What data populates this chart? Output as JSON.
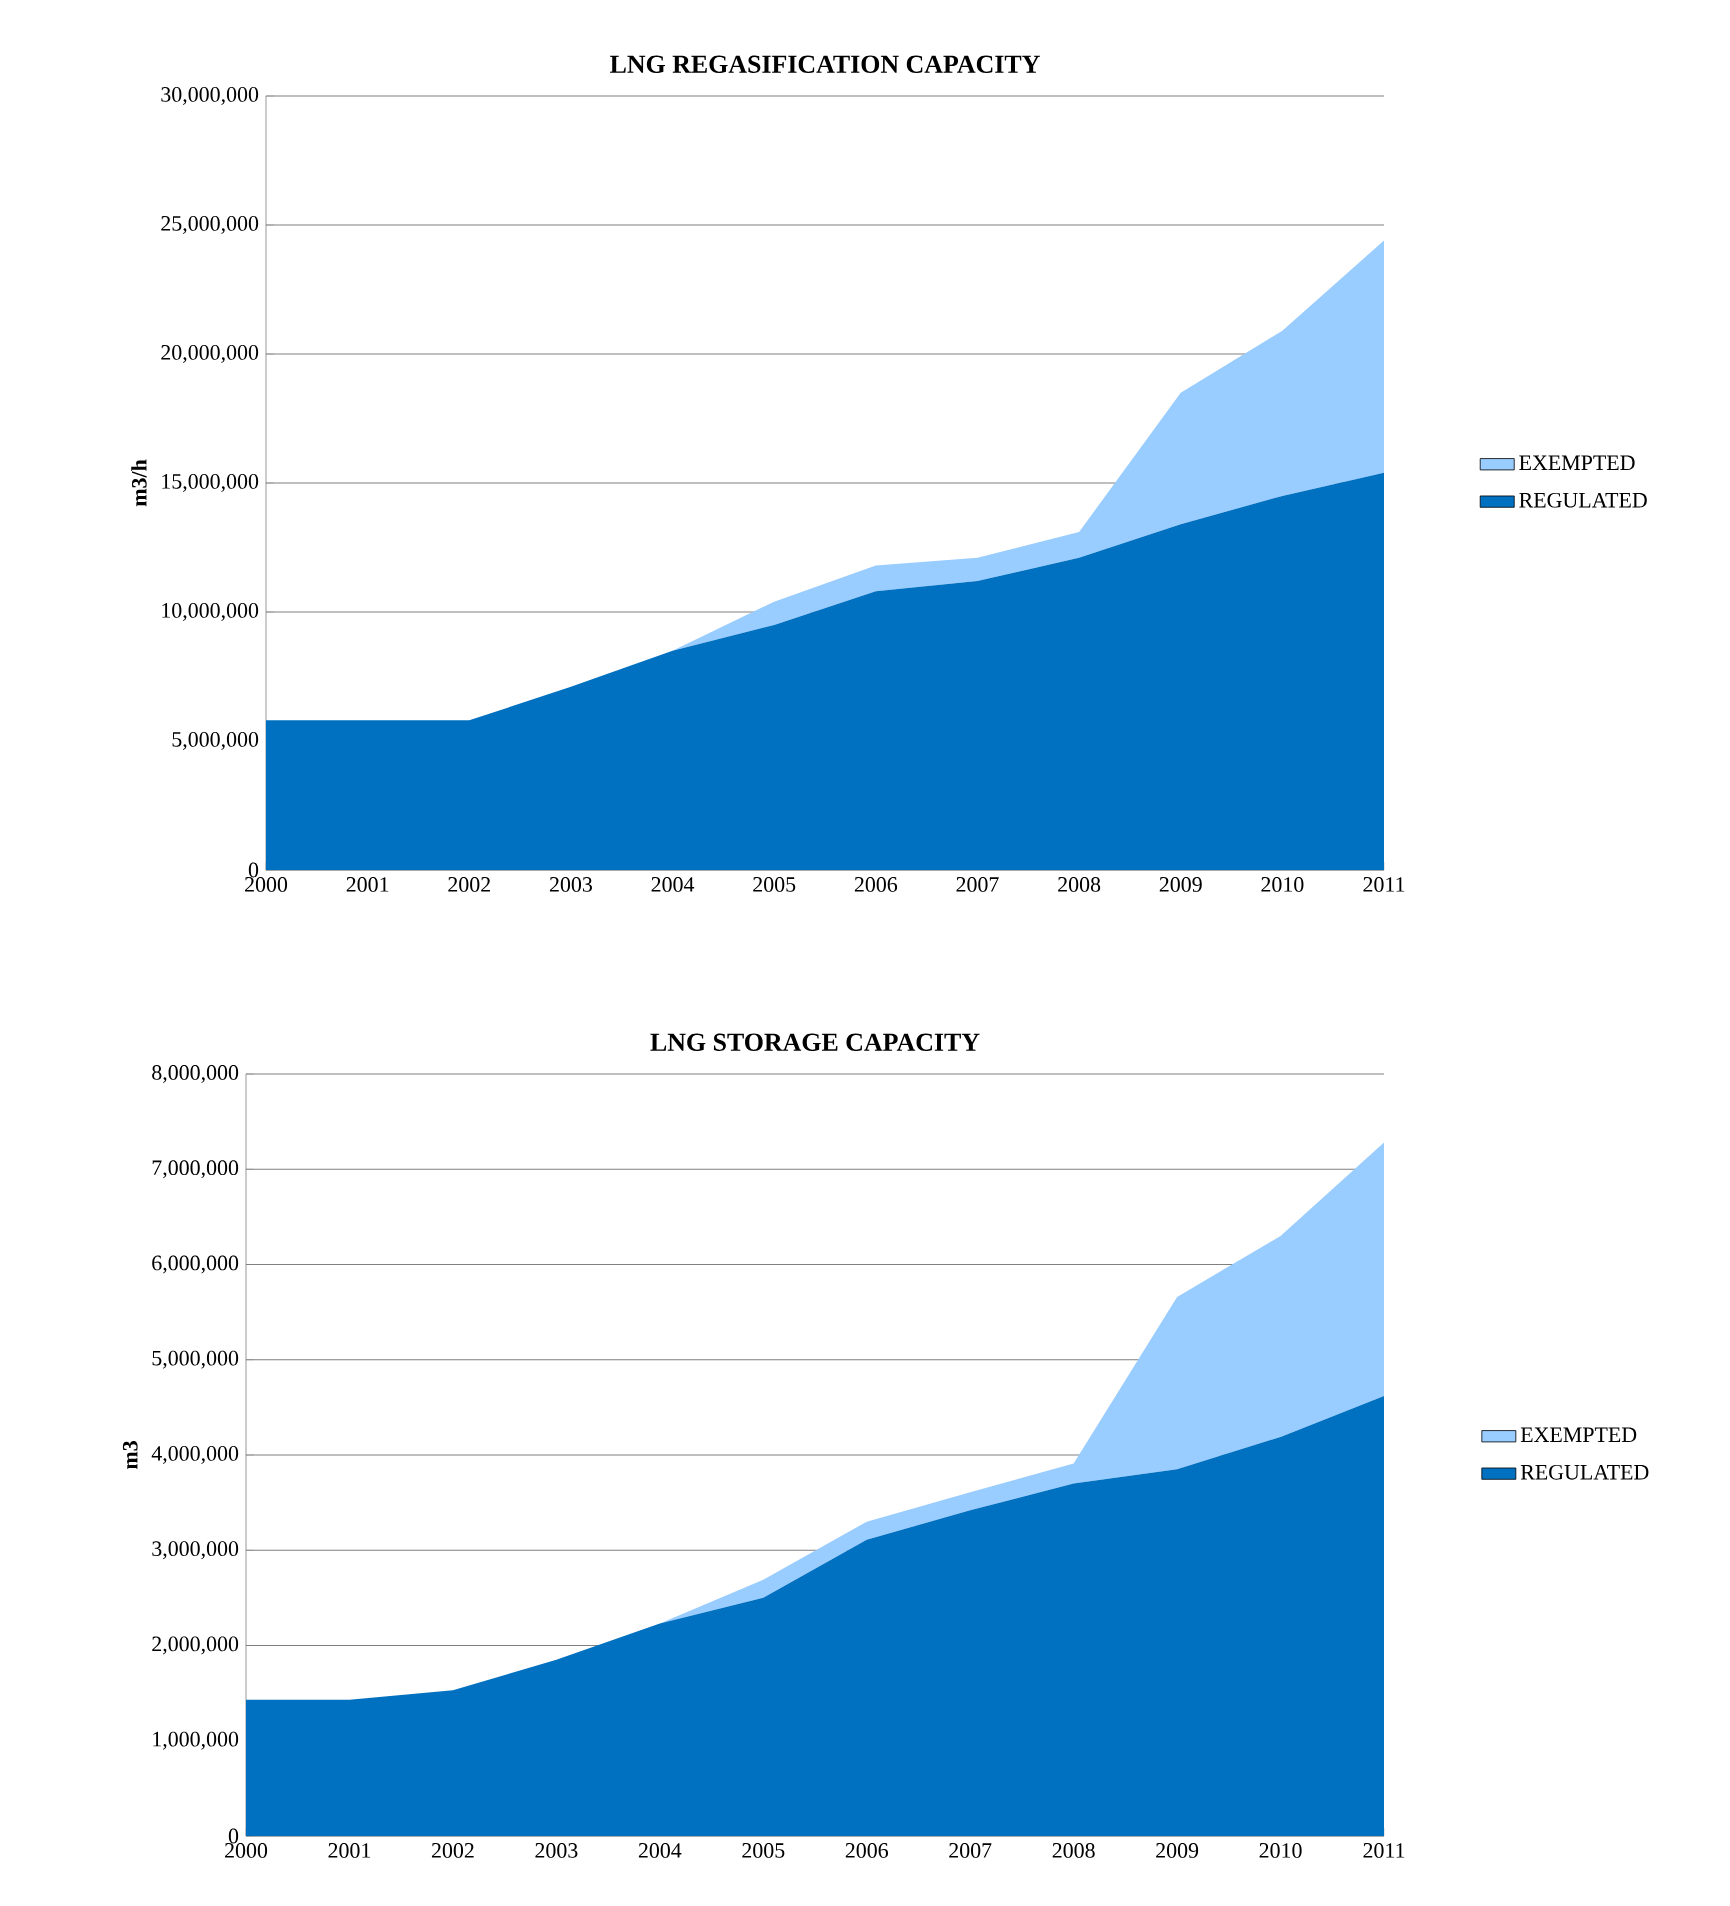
{
  "chart_data": [
    {
      "type": "area",
      "title": "LNG REGASIFICATION  CAPACITY",
      "ylabel": "m3/h",
      "stacked": true,
      "grid": "y",
      "legend": "right",
      "categories": [
        "2000",
        "2001",
        "2002",
        "2003",
        "2004",
        "2005",
        "2006",
        "2007",
        "2008",
        "2009",
        "2010",
        "2011"
      ],
      "ylim": [
        0,
        30000000
      ],
      "yticks": [
        0,
        {
          "value": 5000000,
          "label": "5,000,000"
        },
        {
          "value": 10000000,
          "label": "10,000,000"
        },
        {
          "value": 15000000,
          "label": "15,000,000"
        },
        {
          "value": 20000000,
          "label": "20,000,000"
        },
        {
          "value": 25000000,
          "label": "25,000,000"
        },
        {
          "value": 30000000,
          "label": "30,000,000"
        }
      ],
      "series": [
        {
          "name": "REGULATED",
          "color": "#0070c0",
          "values": [
            5800000,
            5800000,
            5800000,
            7100000,
            8500000,
            9500000,
            10800000,
            11200000,
            12100000,
            13400000,
            14500000,
            15400000
          ]
        },
        {
          "name": "EXEMPTED",
          "color": "#99ccff",
          "values": [
            0,
            0,
            0,
            0,
            0,
            900000,
            1000000,
            900000,
            1000000,
            5100000,
            6400000,
            9000000
          ]
        }
      ]
    },
    {
      "type": "area",
      "title": "LNG STORAGE  CAPACITY",
      "ylabel": "m3",
      "stacked": true,
      "grid": "y",
      "legend": "right",
      "categories": [
        "2000",
        "2001",
        "2002",
        "2003",
        "2004",
        "2005",
        "2006",
        "2007",
        "2008",
        "2009",
        "2010",
        "2011"
      ],
      "ylim": [
        0,
        8000000
      ],
      "yticks": [
        0,
        {
          "value": 1000000,
          "label": "1,000,000"
        },
        {
          "value": 2000000,
          "label": "2,000,000"
        },
        {
          "value": 3000000,
          "label": "3,000,000"
        },
        {
          "value": 4000000,
          "label": "4,000,000"
        },
        {
          "value": 5000000,
          "label": "5,000,000"
        },
        {
          "value": 6000000,
          "label": "6,000,000"
        },
        {
          "value": 7000000,
          "label": "7,000,000"
        },
        {
          "value": 8000000,
          "label": "8,000,000"
        }
      ],
      "series": [
        {
          "name": "REGULATED",
          "color": "#0070c0",
          "values": [
            1430000,
            1430000,
            1530000,
            1850000,
            2230000,
            2500000,
            3110000,
            3420000,
            3700000,
            3850000,
            4190000,
            4620000
          ]
        },
        {
          "name": "EXEMPTED",
          "color": "#99ccff",
          "values": [
            0,
            0,
            0,
            0,
            0,
            190000,
            190000,
            190000,
            210000,
            1810000,
            2110000,
            2660000
          ]
        }
      ]
    }
  ]
}
